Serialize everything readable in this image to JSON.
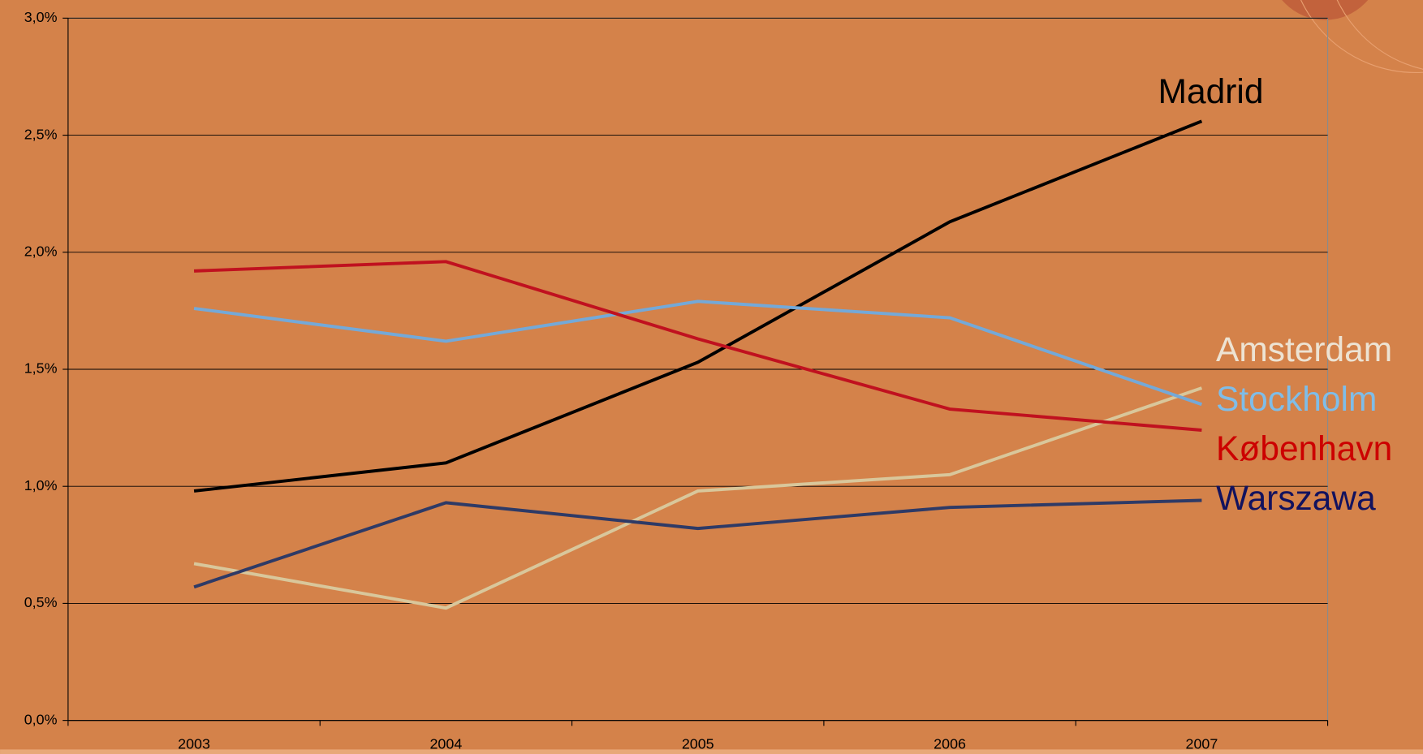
{
  "chart_data": {
    "type": "line",
    "categories": [
      "2003",
      "2004",
      "2005",
      "2006",
      "2007"
    ],
    "series": [
      {
        "name": "Madrid",
        "color": "#000000",
        "values": [
          0.98,
          1.1,
          1.53,
          2.13,
          2.56
        ]
      },
      {
        "name": "Amsterdam",
        "color": "#d9c79b",
        "values": [
          0.67,
          0.48,
          0.98,
          1.05,
          1.42
        ]
      },
      {
        "name": "Stockholm",
        "color": "#74a9d8",
        "values": [
          1.76,
          1.62,
          1.79,
          1.72,
          1.35
        ]
      },
      {
        "name": "København",
        "color": "#c0111f",
        "values": [
          1.92,
          1.96,
          1.63,
          1.33,
          1.24
        ]
      },
      {
        "name": "Warszawa",
        "color": "#2e3a66",
        "values": [
          0.57,
          0.93,
          0.82,
          0.91,
          0.94
        ]
      }
    ],
    "ylim": [
      0,
      3.0
    ],
    "yticks": [
      {
        "value": 0,
        "label": "0,0%"
      },
      {
        "value": 0.5,
        "label": "0,5%"
      },
      {
        "value": 1.0,
        "label": "1,0%"
      },
      {
        "value": 1.5,
        "label": "1,5%"
      },
      {
        "value": 2.0,
        "label": "2,0%"
      },
      {
        "value": 2.5,
        "label": "2,5%"
      },
      {
        "value": 3.0,
        "label": "3,0%"
      }
    ],
    "grid": true
  }
}
